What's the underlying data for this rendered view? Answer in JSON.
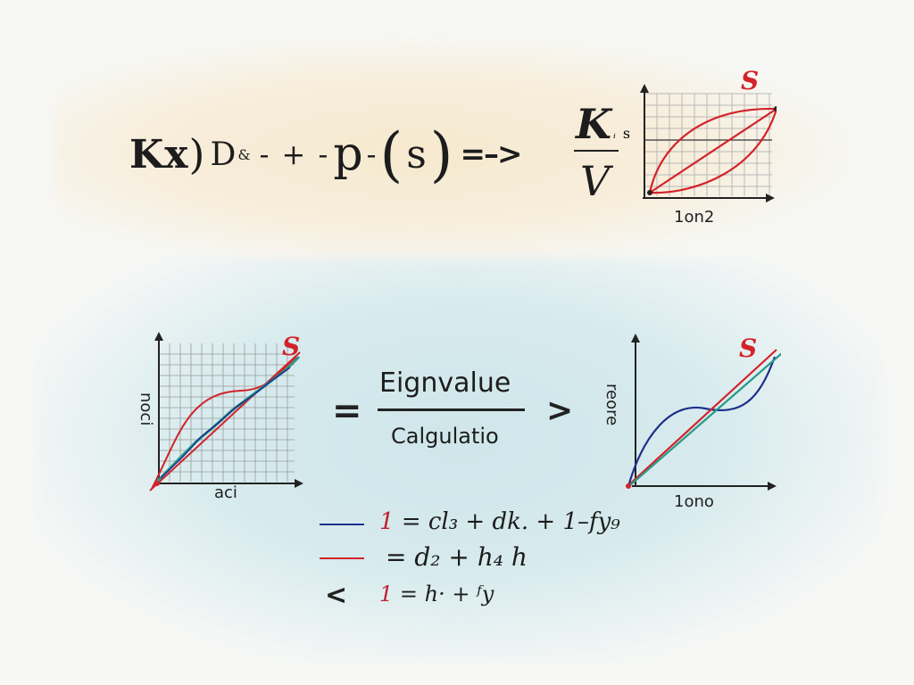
{
  "top_equation": {
    "kx": "Kx",
    "paren_close": ")",
    "d": "D",
    "amp": "&",
    "ops": "- + -",
    "p": "p",
    "ops2": "-",
    "open_paren": "(",
    "s": "s",
    "close_paren": ")",
    "arrow": "=–>"
  },
  "top_fraction": {
    "numerator": "K",
    "numerator_sub": "ᵢ",
    "side_s": "s",
    "denominator": "V"
  },
  "graph_top": {
    "s_label": "S",
    "x_label": "1on2"
  },
  "graph_left": {
    "s_label": "S",
    "x_label": "aci",
    "y_label": "noci"
  },
  "graph_right": {
    "s_label": "S",
    "x_label": "1ono",
    "y_label": "reore"
  },
  "middle": {
    "equals": "=",
    "numerator": "Eignvalue",
    "denominator": "Calgulatio",
    "gt": ">"
  },
  "legend": [
    {
      "color": "#1e2f8c",
      "number": "1",
      "text": "= cl₃ + dk. + 1–fy₉"
    },
    {
      "color": "#d3232a",
      "number": "",
      "text": "= d₂ + h₄ h"
    },
    {
      "color": "",
      "marker": "<",
      "number": "1",
      "text": "= h· + ᶠy"
    }
  ],
  "colors": {
    "red": "#d3232a",
    "blue": "#1e2f8c",
    "teal": "#2a9a8a"
  }
}
